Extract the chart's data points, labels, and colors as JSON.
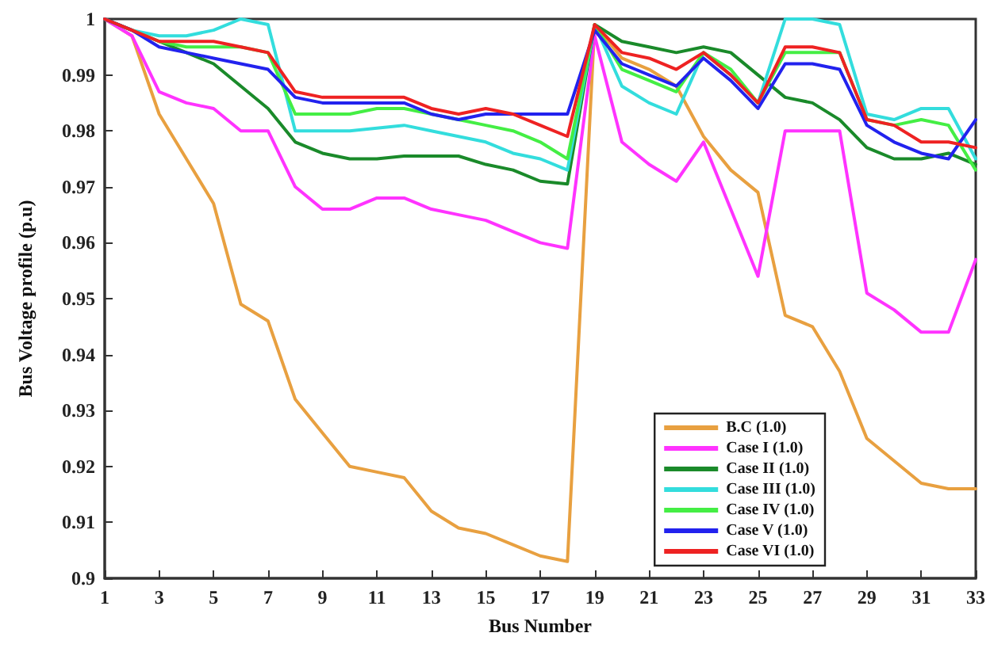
{
  "chart_data": {
    "type": "line",
    "xlabel": "Bus Number",
    "ylabel": "Bus Voltage profile (p.u)",
    "x": [
      1,
      2,
      3,
      4,
      5,
      6,
      7,
      8,
      9,
      10,
      11,
      12,
      13,
      14,
      15,
      16,
      17,
      18,
      19,
      20,
      21,
      22,
      23,
      24,
      25,
      26,
      27,
      28,
      29,
      30,
      31,
      32,
      33
    ],
    "xlim": [
      1,
      33
    ],
    "xticks": [
      1,
      3,
      5,
      7,
      9,
      11,
      13,
      15,
      17,
      19,
      21,
      23,
      25,
      27,
      29,
      31,
      33
    ],
    "ylim": [
      0.9,
      1
    ],
    "yticks": [
      0.9,
      0.91,
      0.92,
      0.93,
      0.94,
      0.95,
      0.96,
      0.97,
      0.98,
      0.99,
      1
    ],
    "grid": false,
    "legend": "bottom right",
    "marker": "none",
    "line_style": "solid",
    "series": [
      {
        "name": "B.C (1.0)",
        "color": "#e8a040",
        "values": [
          1,
          0.997,
          0.983,
          0.975,
          0.967,
          0.949,
          0.946,
          0.932,
          0.926,
          0.92,
          0.919,
          0.918,
          0.912,
          0.909,
          0.908,
          0.906,
          0.904,
          0.903,
          0.999,
          0.993,
          0.991,
          0.988,
          0.979,
          0.973,
          0.969,
          0.947,
          0.945,
          0.937,
          0.925,
          0.921,
          0.917,
          0.916,
          0.916
        ]
      },
      {
        "name": "Case I (1.0)",
        "color": "#ff33ff",
        "values": [
          1,
          0.997,
          0.987,
          0.985,
          0.984,
          0.98,
          0.98,
          0.97,
          0.966,
          0.966,
          0.968,
          0.968,
          0.966,
          0.965,
          0.964,
          0.962,
          0.96,
          0.959,
          0.997,
          0.978,
          0.974,
          0.971,
          0.978,
          0.966,
          0.954,
          0.98,
          0.98,
          0.98,
          0.951,
          0.948,
          0.944,
          0.944,
          0.957
        ]
      },
      {
        "name": "Case II (1.0)",
        "color": "#1a8a2a",
        "values": [
          1,
          0.998,
          0.996,
          0.994,
          0.992,
          0.988,
          0.984,
          0.978,
          0.976,
          0.975,
          0.975,
          0.9755,
          0.9755,
          0.9755,
          0.974,
          0.973,
          0.971,
          0.9705,
          0.999,
          0.996,
          0.995,
          0.994,
          0.995,
          0.994,
          0.99,
          0.986,
          0.985,
          0.982,
          0.977,
          0.975,
          0.975,
          0.976,
          0.974
        ]
      },
      {
        "name": "Case III (1.0)",
        "color": "#33dddd",
        "values": [
          1,
          0.998,
          0.997,
          0.997,
          0.998,
          1,
          0.999,
          0.98,
          0.98,
          0.98,
          0.9805,
          0.981,
          0.98,
          0.979,
          0.978,
          0.976,
          0.975,
          0.973,
          0.999,
          0.988,
          0.985,
          0.983,
          0.994,
          0.99,
          0.985,
          1,
          1,
          0.999,
          0.983,
          0.982,
          0.984,
          0.984,
          0.975
        ]
      },
      {
        "name": "Case IV (1.0)",
        "color": "#44ee44",
        "values": [
          1,
          0.998,
          0.996,
          0.995,
          0.995,
          0.995,
          0.994,
          0.983,
          0.983,
          0.983,
          0.984,
          0.984,
          0.983,
          0.982,
          0.981,
          0.98,
          0.978,
          0.975,
          0.999,
          0.991,
          0.989,
          0.987,
          0.994,
          0.991,
          0.985,
          0.994,
          0.994,
          0.994,
          0.982,
          0.981,
          0.982,
          0.981,
          0.973
        ]
      },
      {
        "name": "Case V (1.0)",
        "color": "#2222ee",
        "values": [
          1,
          0.998,
          0.995,
          0.994,
          0.993,
          0.992,
          0.991,
          0.986,
          0.985,
          0.985,
          0.985,
          0.985,
          0.983,
          0.982,
          0.983,
          0.983,
          0.983,
          0.983,
          0.998,
          0.992,
          0.99,
          0.988,
          0.993,
          0.989,
          0.984,
          0.992,
          0.992,
          0.991,
          0.981,
          0.978,
          0.976,
          0.975,
          0.982
        ]
      },
      {
        "name": "Case VI (1.0)",
        "color": "#ee2222",
        "values": [
          1,
          0.998,
          0.996,
          0.996,
          0.996,
          0.995,
          0.994,
          0.987,
          0.986,
          0.986,
          0.986,
          0.986,
          0.984,
          0.983,
          0.984,
          0.983,
          0.981,
          0.979,
          0.999,
          0.994,
          0.993,
          0.991,
          0.994,
          0.99,
          0.985,
          0.995,
          0.995,
          0.994,
          0.982,
          0.981,
          0.978,
          0.978,
          0.977
        ]
      }
    ]
  }
}
